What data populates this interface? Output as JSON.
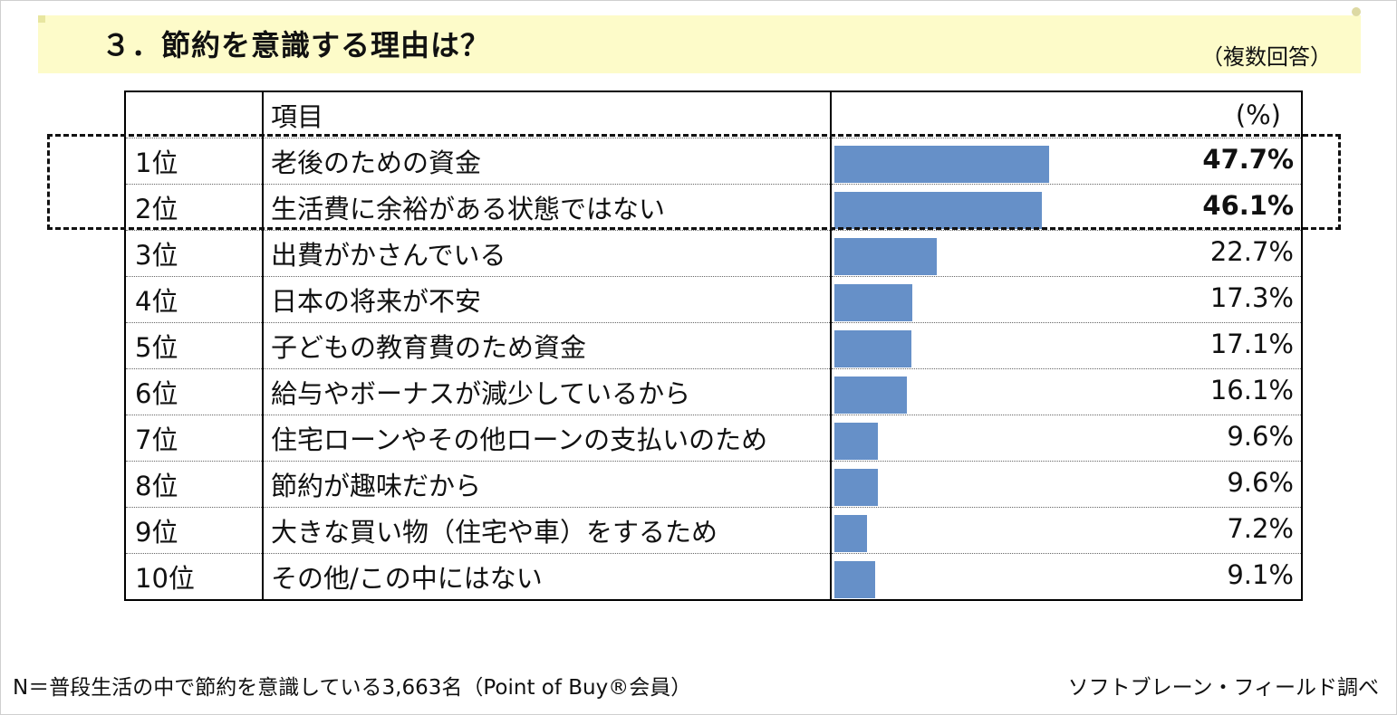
{
  "header": {
    "title": "３．節約を意識する理由は？",
    "subtitle": "（複数回答）"
  },
  "table": {
    "col_item": "項目",
    "col_pct": "(%)"
  },
  "chart_data": {
    "type": "bar",
    "orientation": "horizontal",
    "categories": [
      "老後のための資金",
      "生活費に余裕がある状態ではない",
      "出費がかさんでいる",
      "日本の将来が不安",
      "子どもの教育費のため資金",
      "給与やボーナスが減少しているから",
      "住宅ローンやその他ローンの支払いのため",
      "節約が趣味だから",
      "大きな買い物（住宅や車）をするため",
      "その他/この中にはない"
    ],
    "ranks": [
      "1位",
      "2位",
      "3位",
      "4位",
      "5位",
      "6位",
      "7位",
      "8位",
      "9位",
      "10位"
    ],
    "values": [
      47.7,
      46.1,
      22.7,
      17.3,
      17.1,
      16.1,
      9.6,
      9.6,
      7.2,
      9.1
    ],
    "labels": [
      "47.7%",
      "46.1%",
      "22.7%",
      "17.3%",
      "17.1%",
      "16.1%",
      "9.6%",
      "9.6%",
      "7.2%",
      "9.1%"
    ],
    "highlighted": [
      true,
      true,
      false,
      false,
      false,
      false,
      false,
      false,
      false,
      false
    ],
    "xlim": [
      0,
      100
    ],
    "bar_color": "#6690c8"
  },
  "footer": {
    "note": "N＝普段生活の中で節約を意識している3,663名（Point of Buy®会員）",
    "source": "ソフトブレーン・フィールド調べ"
  }
}
